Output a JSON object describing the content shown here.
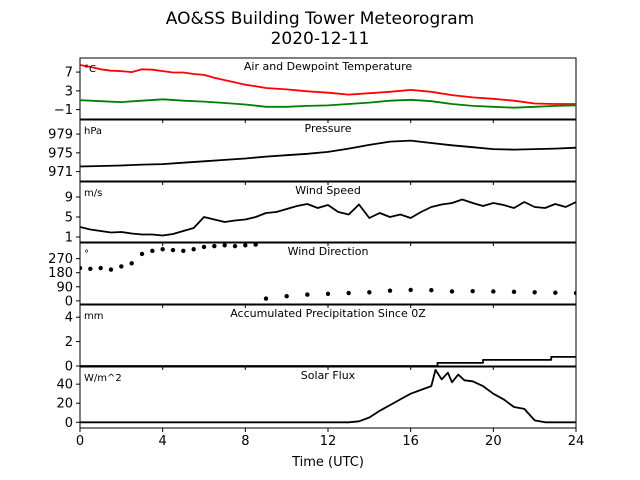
{
  "chart_data": {
    "type": "line",
    "title": "AO&SS Building Tower Meteorogram",
    "subtitle": "2020-12-11",
    "xlabel": "Time (UTC)",
    "xlim": [
      0,
      24
    ],
    "xticks": [
      "0",
      "4",
      "8",
      "12",
      "16",
      "20",
      "24"
    ],
    "panels": [
      {
        "id": "temperature",
        "title": "Air and Dewpoint Temperature",
        "unit": "°C",
        "ylim": [
          -3,
          10
        ],
        "yticks": [
          "7",
          "3",
          "−1"
        ],
        "yticks_values": [
          7,
          3,
          -1
        ],
        "series": [
          {
            "color": "#ff0000",
            "x": [
              0,
              0.5,
              1,
              1.5,
              2,
              2.5,
              3,
              3.5,
              4,
              4.5,
              5,
              5.5,
              6,
              6.5,
              7,
              7.5,
              8,
              8.5,
              9,
              10,
              11,
              12,
              13,
              14,
              15,
              16,
              17,
              18,
              19,
              20,
              21,
              22,
              23,
              24
            ],
            "y": [
              8.5,
              8.1,
              7.6,
              7.3,
              7.2,
              7.0,
              7.6,
              7.5,
              7.2,
              6.9,
              6.9,
              6.6,
              6.4,
              5.8,
              5.3,
              4.8,
              4.3,
              4.0,
              3.6,
              3.3,
              2.9,
              2.6,
              2.2,
              2.5,
              2.8,
              3.2,
              2.8,
              2.1,
              1.6,
              1.3,
              0.9,
              0.3,
              0.2,
              0.2
            ]
          },
          {
            "color": "#008000",
            "x": [
              0,
              1,
              2,
              3,
              4,
              5,
              6,
              7,
              8,
              9,
              10,
              11,
              12,
              13,
              14,
              15,
              16,
              17,
              18,
              19,
              20,
              21,
              22,
              23,
              24
            ],
            "y": [
              1.0,
              0.8,
              0.6,
              0.9,
              1.2,
              0.9,
              0.7,
              0.4,
              0.1,
              -0.4,
              -0.4,
              -0.2,
              -0.1,
              0.2,
              0.5,
              0.9,
              1.1,
              0.8,
              0.2,
              -0.2,
              -0.4,
              -0.6,
              -0.4,
              -0.2,
              -0.1
            ]
          }
        ]
      },
      {
        "id": "pressure",
        "title": "Pressure",
        "unit": "hPa",
        "ylim": [
          969,
          982
        ],
        "yticks": [
          "979",
          "975",
          "971"
        ],
        "yticks_values": [
          979,
          975,
          971
        ],
        "series": [
          {
            "color": "#000000",
            "x": [
              0,
              1,
              2,
              3,
              4,
              5,
              6,
              7,
              8,
              9,
              10,
              11,
              12,
              13,
              14,
              15,
              16,
              17,
              18,
              19,
              20,
              21,
              22,
              23,
              24
            ],
            "y": [
              972.1,
              972.2,
              972.3,
              972.5,
              972.6,
              972.9,
              973.2,
              973.5,
              973.8,
              974.2,
              974.5,
              974.8,
              975.2,
              975.9,
              976.7,
              977.4,
              977.6,
              977.1,
              976.6,
              976.2,
              975.8,
              975.7,
              975.8,
              975.9,
              976.1
            ]
          }
        ]
      },
      {
        "id": "wind-speed",
        "title": "Wind Speed",
        "unit": "m/s",
        "ylim": [
          0,
          12
        ],
        "yticks": [
          "9",
          "5",
          "1"
        ],
        "yticks_values": [
          9,
          5,
          1
        ],
        "series": [
          {
            "color": "#000000",
            "x": [
              0,
              0.5,
              1,
              1.5,
              2,
              2.5,
              3,
              3.5,
              4,
              4.5,
              5,
              5.5,
              6,
              6.5,
              7,
              7.5,
              8,
              8.5,
              9,
              9.5,
              10,
              10.5,
              11,
              11.5,
              12,
              12.5,
              13,
              13.5,
              14,
              14.5,
              15,
              15.5,
              16,
              16.5,
              17,
              17.5,
              18,
              18.5,
              19,
              19.5,
              20,
              20.5,
              21,
              21.5,
              22,
              22.5,
              23,
              23.5,
              24
            ],
            "y": [
              3.0,
              2.5,
              2.2,
              1.9,
              2.0,
              1.7,
              1.5,
              1.5,
              1.3,
              1.6,
              2.2,
              2.8,
              5.0,
              4.5,
              4.0,
              4.3,
              4.5,
              5.0,
              5.8,
              6.0,
              6.6,
              7.2,
              7.6,
              6.8,
              7.4,
              6.0,
              5.5,
              7.5,
              4.8,
              5.8,
              5.0,
              5.5,
              4.8,
              6.0,
              7.0,
              7.5,
              7.8,
              8.5,
              7.8,
              7.2,
              7.8,
              7.4,
              6.8,
              8.0,
              7.0,
              6.8,
              7.6,
              7.0,
              8.0
            ]
          }
        ]
      },
      {
        "id": "wind-direction",
        "title": "Wind Direction",
        "unit": "°",
        "ylim": [
          -20,
          370
        ],
        "yticks": [
          "270",
          "180",
          "90",
          "0"
        ],
        "yticks_values": [
          270,
          180,
          90,
          0
        ],
        "series": [
          {
            "color": "#000000",
            "style": "dots",
            "x": [
              0,
              0.5,
              1,
              1.5,
              2,
              2.5,
              3,
              3.5,
              4,
              4.5,
              5,
              5.5,
              6,
              6.5,
              7,
              7.5,
              8,
              8.5,
              9,
              10,
              11,
              12,
              13,
              14,
              15,
              16,
              17,
              18,
              19,
              20,
              21,
              22,
              23,
              24
            ],
            "y": [
              210,
              205,
              210,
              200,
              220,
              240,
              300,
              320,
              330,
              325,
              320,
              330,
              345,
              350,
              355,
              350,
              355,
              360,
              15,
              30,
              40,
              45,
              50,
              55,
              65,
              70,
              68,
              60,
              62,
              60,
              58,
              55,
              52,
              50
            ]
          }
        ]
      },
      {
        "id": "precipitation",
        "title": "Accumulated Precipitation Since 0Z",
        "unit": "mm",
        "ylim": [
          0,
          5
        ],
        "yticks": [
          "4",
          "2",
          "0"
        ],
        "yticks_values": [
          4,
          2,
          0
        ],
        "series": [
          {
            "color": "#000000",
            "style": "step",
            "x": [
              0,
              17.3,
              17.3,
              19.5,
              19.5,
              22.8,
              22.8,
              24
            ],
            "y": [
              0,
              0,
              0.25,
              0.25,
              0.5,
              0.5,
              0.75,
              0.75
            ]
          }
        ]
      },
      {
        "id": "solar",
        "title": "Solar Flux",
        "unit": "W/m^2",
        "ylim": [
          -6,
          58
        ],
        "yticks": [
          "40",
          "20",
          "0"
        ],
        "yticks_values": [
          40,
          20,
          0
        ],
        "series": [
          {
            "color": "#000000",
            "x": [
              0,
              13,
              13.5,
              14,
              14.5,
              15,
              15.5,
              16,
              16.5,
              17,
              17.2,
              17.5,
              17.8,
              18,
              18.3,
              18.6,
              19,
              19.5,
              20,
              20.5,
              21,
              21.5,
              22,
              22.5,
              23,
              24
            ],
            "y": [
              0,
              0,
              1,
              5,
              12,
              18,
              24,
              30,
              34,
              38,
              55,
              45,
              52,
              42,
              50,
              44,
              43,
              38,
              30,
              24,
              16,
              14,
              2,
              0,
              0,
              0
            ]
          }
        ]
      }
    ]
  }
}
